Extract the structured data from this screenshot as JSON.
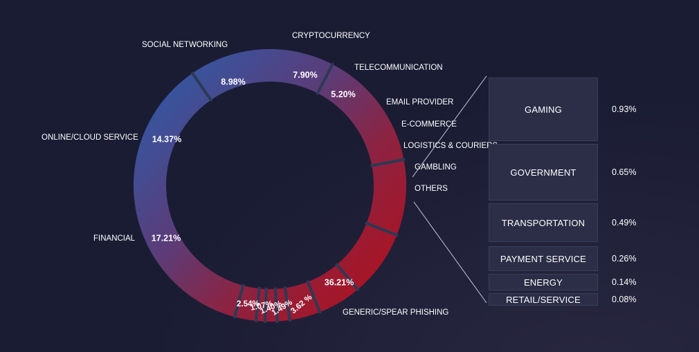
{
  "chart_data": {
    "type": "pie",
    "variant": "donut",
    "slices": [
      {
        "label": "GENERIC/SPEAR PHISHING",
        "value": 36.21,
        "value_label": "36.21%"
      },
      {
        "label": "FINANCIAL",
        "value": 17.21,
        "value_label": "17.21%"
      },
      {
        "label": "ONLINE/CLOUD SERVICE",
        "value": 14.37,
        "value_label": "14.37%"
      },
      {
        "label": "SOCIAL NETWORKING",
        "value": 8.98,
        "value_label": "8.98%"
      },
      {
        "label": "CRYPTOCURRENCY",
        "value": 7.9,
        "value_label": "7.90%"
      },
      {
        "label": "TELECOMMUNICATION",
        "value": 5.2,
        "value_label": "5.20%"
      },
      {
        "label": "EMAIL PROVIDER",
        "value": 3.62,
        "value_label": "3.62 %"
      },
      {
        "label": "E-COMMERCE",
        "value": 1.49,
        "value_label": "1.49%"
      },
      {
        "label": "LOGISTICS & COURIERS",
        "value": 1.4,
        "value_label": "1.40%"
      },
      {
        "label": "GAMBLING",
        "value": 1.07,
        "value_label": "1.07%"
      },
      {
        "label": "OTHERS",
        "value": 2.54,
        "value_label": "2.54%"
      }
    ],
    "others_breakdown": [
      {
        "label": "GAMING",
        "value": 0.93,
        "value_label": "0.93%"
      },
      {
        "label": "GOVERNMENT",
        "value": 0.65,
        "value_label": "0.65%"
      },
      {
        "label": "TRANSPORTATION",
        "value": 0.49,
        "value_label": "0.49%"
      },
      {
        "label": "PAYMENT SERVICE",
        "value": 0.26,
        "value_label": "0.26%"
      },
      {
        "label": "ENERGY",
        "value": 0.14,
        "value_label": "0.14%"
      },
      {
        "label": "RETAIL/SERVICE",
        "value": 0.08,
        "value_label": "0.08%"
      }
    ],
    "colors": {
      "background": "#1a1c33",
      "gradient_red": "#b0101e",
      "gradient_blue": "#2f5aa8",
      "separator": "#2c3a55",
      "box_fill": "#2c2e47",
      "box_border": "#3a3d5a",
      "text": "#ffffff"
    }
  }
}
